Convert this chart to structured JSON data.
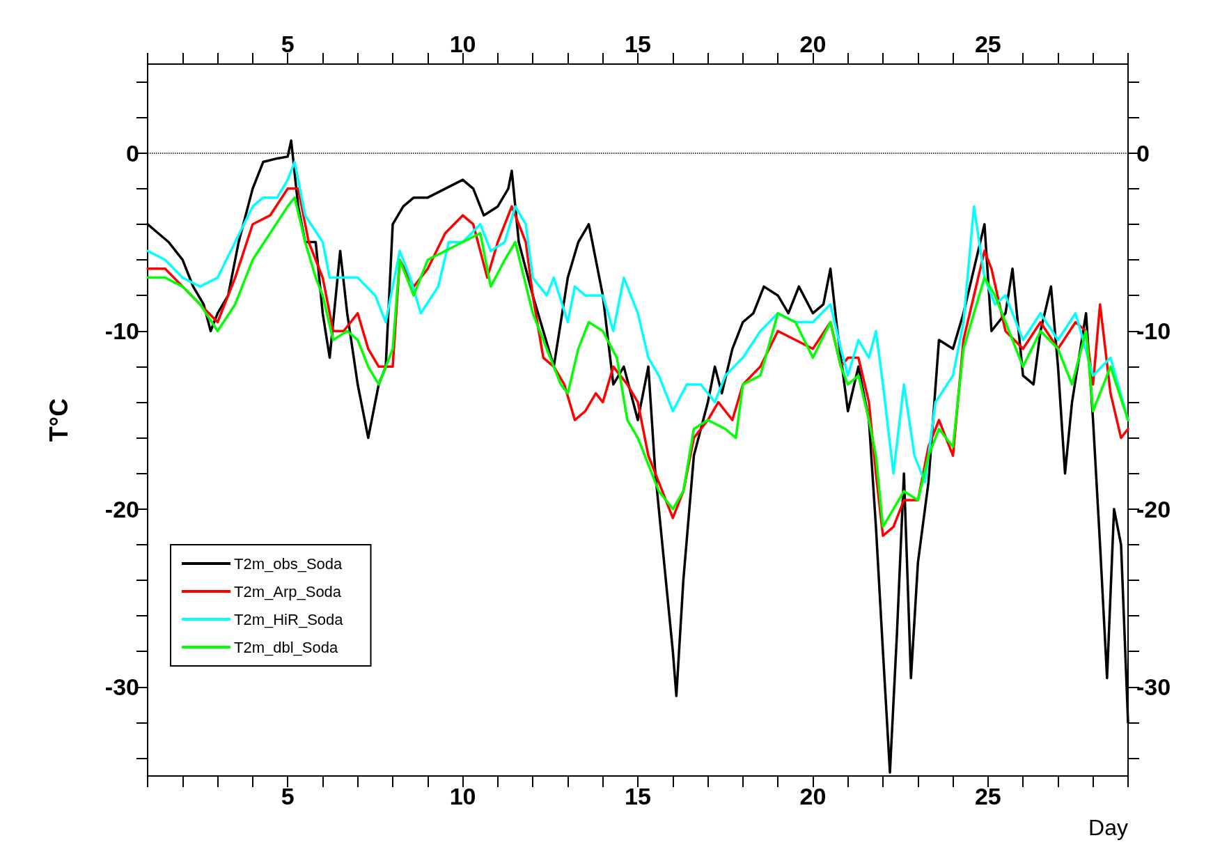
{
  "chart_data": {
    "type": "line",
    "xlabel": "Day",
    "ylabel": "T°C",
    "xlim": [
      1,
      29
    ],
    "x2lim": [
      1,
      29
    ],
    "ylim": [
      -35,
      5
    ],
    "y2lim": [
      -35,
      5
    ],
    "xticks": [
      {
        "value": 1,
        "label": null
      },
      {
        "value": 2,
        "label": null
      },
      {
        "value": 3,
        "label": null
      },
      {
        "value": 4,
        "label": null
      },
      5,
      {
        "value": 6,
        "label": null
      },
      {
        "value": 7,
        "label": null
      },
      {
        "value": 8,
        "label": null
      },
      {
        "value": 9,
        "label": null
      },
      10,
      {
        "value": 11,
        "label": null
      },
      {
        "value": 12,
        "label": null
      },
      {
        "value": 13,
        "label": null
      },
      {
        "value": 14,
        "label": null
      },
      15,
      {
        "value": 16,
        "label": null
      },
      {
        "value": 17,
        "label": null
      },
      {
        "value": 18,
        "label": null
      },
      {
        "value": 19,
        "label": null
      },
      20,
      {
        "value": 21,
        "label": null
      },
      {
        "value": 22,
        "label": null
      },
      {
        "value": 23,
        "label": null
      },
      {
        "value": 24,
        "label": null
      },
      25,
      {
        "value": 26,
        "label": null
      },
      {
        "value": 27,
        "label": null
      },
      {
        "value": 28,
        "label": null
      },
      {
        "value": 29,
        "label": null
      }
    ],
    "x2ticks": [
      {
        "value": 1,
        "label": null
      },
      {
        "value": 2,
        "label": null
      },
      {
        "value": 3,
        "label": null
      },
      {
        "value": 4,
        "label": null
      },
      5,
      {
        "value": 6,
        "label": null
      },
      {
        "value": 7,
        "label": null
      },
      {
        "value": 8,
        "label": null
      },
      {
        "value": 9,
        "label": null
      },
      10,
      {
        "value": 11,
        "label": null
      },
      {
        "value": 12,
        "label": null
      },
      {
        "value": 13,
        "label": null
      },
      {
        "value": 14,
        "label": null
      },
      15,
      {
        "value": 16,
        "label": null
      },
      {
        "value": 17,
        "label": null
      },
      {
        "value": 18,
        "label": null
      },
      {
        "value": 19,
        "label": null
      },
      20,
      {
        "value": 21,
        "label": null
      },
      {
        "value": 22,
        "label": null
      },
      {
        "value": 23,
        "label": null
      },
      {
        "value": 24,
        "label": null
      },
      25,
      {
        "value": 26,
        "label": null
      },
      {
        "value": 27,
        "label": null
      },
      {
        "value": 28,
        "label": null
      },
      {
        "value": 29,
        "label": null
      }
    ],
    "yticks": [
      {
        "value": -34,
        "label": null
      },
      {
        "value": -32,
        "label": null
      },
      -30,
      {
        "value": -28,
        "label": null
      },
      {
        "value": -26,
        "label": null
      },
      {
        "value": -24,
        "label": null
      },
      {
        "value": -22,
        "label": null
      },
      -20,
      {
        "value": -18,
        "label": null
      },
      {
        "value": -16,
        "label": null
      },
      {
        "value": -14,
        "label": null
      },
      {
        "value": -12,
        "label": null
      },
      -10,
      {
        "value": -8,
        "label": null
      },
      {
        "value": -6,
        "label": null
      },
      {
        "value": -4,
        "label": null
      },
      {
        "value": -2,
        "label": null
      },
      0,
      {
        "value": 2,
        "label": null
      },
      {
        "value": 4,
        "label": null
      }
    ],
    "y2ticks": [
      {
        "value": -34,
        "label": null
      },
      {
        "value": -32,
        "label": null
      },
      -30,
      {
        "value": -28,
        "label": null
      },
      {
        "value": -26,
        "label": null
      },
      {
        "value": -24,
        "label": null
      },
      {
        "value": -22,
        "label": null
      },
      -20,
      {
        "value": -18,
        "label": null
      },
      {
        "value": -16,
        "label": null
      },
      {
        "value": -14,
        "label": null
      },
      {
        "value": -12,
        "label": null
      },
      -10,
      {
        "value": -8,
        "label": null
      },
      {
        "value": -6,
        "label": null
      },
      {
        "value": -4,
        "label": null
      },
      {
        "value": -2,
        "label": null
      },
      0,
      {
        "value": 2,
        "label": null
      },
      {
        "value": 4,
        "label": null
      }
    ],
    "grid": false,
    "legend": "bottom left",
    "marker": "none",
    "line_style": "solid",
    "ref_lines": [
      {
        "axis": "y",
        "value": 0,
        "line_style": "dotted",
        "color": "#000000"
      }
    ],
    "series": [
      {
        "name": "T2m_obs_Soda",
        "color": "#000000",
        "x": [
          1,
          1.3,
          1.6,
          2,
          2.3,
          2.6,
          2.8,
          3,
          3.3,
          3.6,
          4,
          4.3,
          4.7,
          5,
          5.1,
          5.3,
          5.5,
          5.8,
          6,
          6.2,
          6.5,
          6.7,
          7,
          7.3,
          7.6,
          7.8,
          8,
          8.3,
          8.6,
          9,
          9.5,
          10,
          10.3,
          10.6,
          11,
          11.3,
          11.4,
          11.6,
          12,
          12.3,
          12.6,
          13,
          13.3,
          13.6,
          14,
          14.3,
          14.6,
          15,
          15.3,
          15.5,
          15.8,
          16,
          16.1,
          16.3,
          16.6,
          17,
          17.2,
          17.4,
          17.7,
          18,
          18.3,
          18.6,
          19,
          19.3,
          19.6,
          20,
          20.3,
          20.5,
          20.7,
          21,
          21.3,
          21.6,
          21.8,
          22,
          22.2,
          22.4,
          22.6,
          22.8,
          23,
          23.3,
          23.6,
          24,
          24.3,
          24.6,
          24.9,
          25.1,
          25.5,
          25.7,
          26,
          26.3,
          26.5,
          26.8,
          27,
          27.2,
          27.4,
          27.8,
          28,
          28.2,
          28.4,
          28.6,
          28.8,
          29
        ],
        "values": [
          -4,
          -4.5,
          -5,
          -6,
          -7.5,
          -8.5,
          -10,
          -9,
          -8,
          -5,
          -2,
          -0.5,
          -0.3,
          -0.2,
          0.7,
          -3,
          -5,
          -5,
          -9,
          -11.5,
          -5.5,
          -9,
          -13,
          -16,
          -13,
          -12,
          -4,
          -3,
          -2.5,
          -2.5,
          -2,
          -1.5,
          -2,
          -3.5,
          -3,
          -2,
          -1,
          -5,
          -8,
          -10,
          -12,
          -7,
          -5,
          -4,
          -8,
          -13,
          -12,
          -15,
          -12,
          -18,
          -24,
          -28,
          -30.5,
          -24,
          -17,
          -14,
          -12,
          -13.5,
          -11,
          -9.5,
          -9,
          -7.5,
          -8,
          -9,
          -7.5,
          -9,
          -8.5,
          -6.5,
          -10,
          -14.5,
          -12,
          -15,
          -21,
          -28,
          -34.8,
          -27,
          -18,
          -29.5,
          -23,
          -18.5,
          -10.5,
          -11,
          -9,
          -6.5,
          -4,
          -10,
          -9,
          -6.5,
          -12.5,
          -13,
          -10,
          -7.5,
          -12,
          -18,
          -14,
          -9,
          -15,
          -22,
          -29.5,
          -20,
          -22,
          -32
        ]
      },
      {
        "name": "T2m_Arp_Soda",
        "color": "#ff0000",
        "x": [
          1,
          1.5,
          2,
          2.5,
          3,
          3.5,
          4,
          4.5,
          5,
          5.3,
          5.6,
          6,
          6.3,
          6.6,
          7,
          7.3,
          7.6,
          8,
          8.2,
          8.6,
          9,
          9.5,
          10,
          10.3,
          10.7,
          11,
          11.4,
          11.8,
          12,
          12.3,
          12.6,
          12.9,
          13.2,
          13.5,
          13.8,
          14,
          14.3,
          14.7,
          15,
          15.3,
          15.6,
          16,
          16.3,
          16.6,
          17,
          17.3,
          17.7,
          18,
          18.5,
          19,
          19.5,
          20,
          20.5,
          20.8,
          21,
          21.3,
          21.6,
          21.8,
          22,
          22.3,
          22.6,
          23,
          23.3,
          23.6,
          24,
          24.3,
          24.6,
          24.9,
          25.1,
          25.5,
          26,
          26.5,
          27,
          27.5,
          27.8,
          28,
          28.2,
          28.5,
          28.8,
          29
        ],
        "values": [
          -6.5,
          -6.5,
          -7.5,
          -8.5,
          -9.5,
          -7,
          -4,
          -3.5,
          -2,
          -2,
          -5,
          -7,
          -10,
          -10,
          -9,
          -11,
          -12,
          -12,
          -6,
          -7.5,
          -6.5,
          -4.5,
          -3.5,
          -4,
          -7,
          -5,
          -3,
          -5,
          -8,
          -11.5,
          -12,
          -13,
          -15,
          -14.5,
          -13.5,
          -14,
          -12,
          -13,
          -14,
          -17,
          -18.5,
          -20.5,
          -19,
          -16,
          -15,
          -14,
          -15,
          -13,
          -12,
          -10,
          -10.5,
          -11,
          -9.5,
          -12,
          -11.5,
          -11.5,
          -14,
          -18,
          -21.5,
          -21,
          -19.5,
          -19.5,
          -16.5,
          -15,
          -17,
          -10.5,
          -8,
          -5.5,
          -6.5,
          -10,
          -11,
          -9.5,
          -11,
          -9.5,
          -10,
          -13,
          -8.5,
          -13.5,
          -16,
          -15.5
        ]
      },
      {
        "name": "T2m_HiR_Soda",
        "color": "#00ffff",
        "x": [
          1,
          1.5,
          2,
          2.5,
          3,
          3.5,
          4,
          4.3,
          4.7,
          5,
          5.2,
          5.5,
          6,
          6.2,
          7,
          7.5,
          7.8,
          8.2,
          8.5,
          8.8,
          9.3,
          9.6,
          10,
          10.5,
          10.8,
          11.2,
          11.5,
          11.8,
          12,
          12.4,
          12.6,
          13,
          13.2,
          13.5,
          14,
          14.3,
          14.6,
          15,
          15.3,
          15.6,
          16,
          16.4,
          16.8,
          17.2,
          17.5,
          18,
          18.5,
          19,
          19.5,
          20,
          20.5,
          20.8,
          21,
          21.3,
          21.6,
          21.8,
          22,
          22.3,
          22.6,
          22.9,
          23.2,
          23.5,
          24,
          24.3,
          24.6,
          24.9,
          25.2,
          25.5,
          26,
          26.5,
          27,
          27.5,
          28,
          28.5,
          29
        ],
        "values": [
          -5.5,
          -6,
          -7,
          -7.5,
          -7,
          -5,
          -3,
          -2.5,
          -2.5,
          -1.5,
          -0.5,
          -3.5,
          -5,
          -7,
          -7,
          -8,
          -9.5,
          -5.5,
          -7,
          -9,
          -7.5,
          -5,
          -5,
          -4,
          -5.5,
          -5,
          -3,
          -4,
          -7,
          -8,
          -7,
          -9.5,
          -7.5,
          -8,
          -8,
          -10,
          -7,
          -9,
          -11.5,
          -12.5,
          -14.5,
          -13,
          -13,
          -14,
          -12.5,
          -11.5,
          -10,
          -9,
          -9.5,
          -9.5,
          -8.5,
          -11,
          -12.5,
          -10.5,
          -11.5,
          -10,
          -13,
          -18,
          -13,
          -17,
          -18.5,
          -14,
          -12.5,
          -9.5,
          -3,
          -7,
          -8.5,
          -8,
          -10.5,
          -9,
          -10.5,
          -9,
          -12.5,
          -11.5,
          -15
        ]
      },
      {
        "name": "T2m_dbl_Soda",
        "color": "#00ff00",
        "x": [
          1,
          1.5,
          2,
          2.5,
          3,
          3.5,
          4,
          4.5,
          5,
          5.2,
          5.5,
          5.8,
          6,
          6.3,
          6.7,
          7,
          7.3,
          7.6,
          8,
          8.2,
          8.6,
          9,
          9.5,
          10,
          10.5,
          10.8,
          11.2,
          11.5,
          12,
          12.4,
          12.8,
          13,
          13.3,
          13.6,
          14,
          14.4,
          14.7,
          15,
          15.3,
          15.6,
          16,
          16.3,
          16.6,
          17,
          17.5,
          17.8,
          18,
          18.5,
          19,
          19.5,
          20,
          20.5,
          20.8,
          21,
          21.3,
          21.6,
          21.8,
          22,
          22.3,
          22.6,
          23,
          23.3,
          23.6,
          24,
          24.3,
          24.6,
          24.9,
          25.2,
          25.5,
          26,
          26.5,
          27,
          27.4,
          27.8,
          28,
          28.5,
          29
        ],
        "values": [
          -7,
          -7,
          -7.5,
          -8.5,
          -10,
          -8.5,
          -6,
          -4.5,
          -3,
          -2.5,
          -5,
          -7,
          -8,
          -10.5,
          -10,
          -10.5,
          -12,
          -13,
          -11,
          -6,
          -8,
          -6,
          -5.5,
          -5,
          -4.5,
          -7.5,
          -6,
          -5,
          -9,
          -11,
          -13,
          -13.5,
          -11,
          -9.5,
          -10,
          -11.5,
          -15,
          -16,
          -17.5,
          -19,
          -20,
          -19,
          -15.5,
          -15,
          -15.5,
          -16,
          -13,
          -12.5,
          -9,
          -9.5,
          -11.5,
          -9.5,
          -12,
          -13,
          -12.5,
          -15,
          -17,
          -21,
          -20,
          -19,
          -19.5,
          -17,
          -15.5,
          -16.5,
          -11,
          -9,
          -7,
          -8,
          -9.5,
          -12,
          -10,
          -11,
          -13,
          -10,
          -14.5,
          -12,
          -15
        ]
      }
    ]
  }
}
